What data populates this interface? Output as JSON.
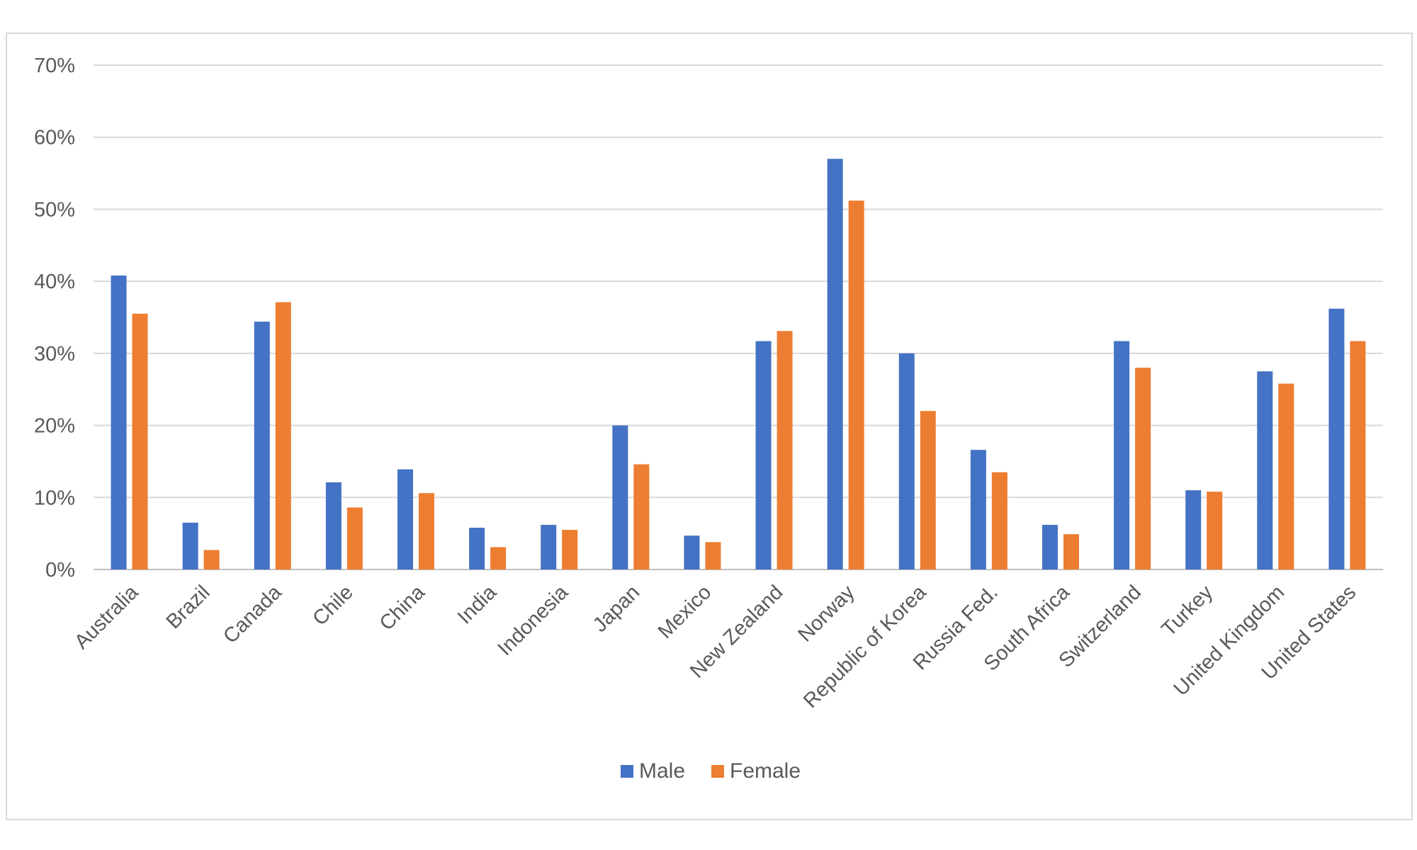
{
  "chart_data": {
    "type": "bar",
    "categories": [
      "Australia",
      "Brazil",
      "Canada",
      "Chile",
      "China",
      "India",
      "Indonesia",
      "Japan",
      "Mexico",
      "New Zealand",
      "Norway",
      "Republic of Korea",
      "Russia Fed.",
      "South Africa",
      "Switzerland",
      "Turkey",
      "United Kingdom",
      "United States"
    ],
    "series": [
      {
        "name": "Male",
        "color": "#4472C4",
        "values": [
          40.8,
          6.5,
          34.4,
          12.1,
          13.9,
          5.8,
          6.2,
          20.0,
          4.7,
          31.7,
          57.0,
          30.0,
          16.6,
          6.2,
          31.7,
          11.0,
          27.5,
          36.2
        ]
      },
      {
        "name": "Female",
        "color": "#ED7D31",
        "values": [
          35.5,
          2.7,
          37.1,
          8.6,
          10.6,
          3.1,
          5.5,
          14.6,
          3.8,
          33.1,
          51.2,
          22.0,
          13.5,
          4.9,
          28.0,
          10.8,
          25.8,
          31.7
        ]
      }
    ],
    "y_ticks": [
      "0%",
      "10%",
      "20%",
      "30%",
      "40%",
      "50%",
      "60%",
      "70%"
    ],
    "ylim": [
      0,
      70
    ],
    "grid": true,
    "legend_position": "bottom",
    "title": "",
    "xlabel": "",
    "ylabel": ""
  }
}
